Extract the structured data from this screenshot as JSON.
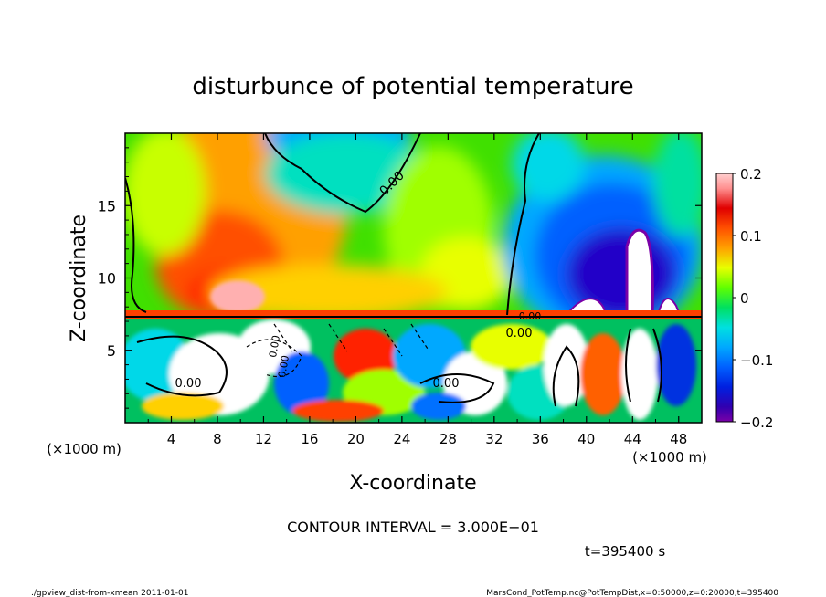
{
  "chart_data": {
    "type": "heatmap",
    "title": "disturbunce of potential temperature",
    "xlabel": "X-coordinate",
    "ylabel": "Z-coordinate",
    "x_unit": "(×1000 m)",
    "y_unit": "(×1000 m)",
    "xlim": [
      0,
      50
    ],
    "ylim": [
      0,
      20
    ],
    "xticks": [
      4,
      8,
      12,
      16,
      20,
      24,
      28,
      32,
      36,
      40,
      44,
      48
    ],
    "yticks": [
      5,
      10,
      15
    ],
    "colorbar": {
      "range": [
        -0.2,
        0.2
      ],
      "tick_labels": [
        "0.2",
        "0.1",
        "0",
        "−0.1",
        "−0.2"
      ],
      "tick_values": [
        0.2,
        0.1,
        0,
        -0.1,
        -0.2
      ]
    },
    "contour_labels": [
      "0.00",
      "0.00",
      "0.00",
      "0.00",
      "0.00",
      "0.00",
      "0.00"
    ],
    "contour_interval_text": "CONTOUR INTERVAL = 3.000E−01",
    "time_text": "t=395400 s",
    "footer_left": "./gpview_dist-from-xmean   2011-01-01",
    "footer_right": "MarsCond_PotTemp.nc@PotTempDist,x=0:50000,z=0:20000,t=395400",
    "colors": [
      "#7a00a8",
      "#2000c8",
      "#0030e0",
      "#0070ff",
      "#00a8ff",
      "#00d8e8",
      "#00e0a0",
      "#00e050",
      "#40e000",
      "#a0ff00",
      "#e8ff00",
      "#ffd000",
      "#ffa000",
      "#ff6000",
      "#ff2000",
      "#e00000",
      "#ff9090",
      "#ffd0d0"
    ]
  }
}
